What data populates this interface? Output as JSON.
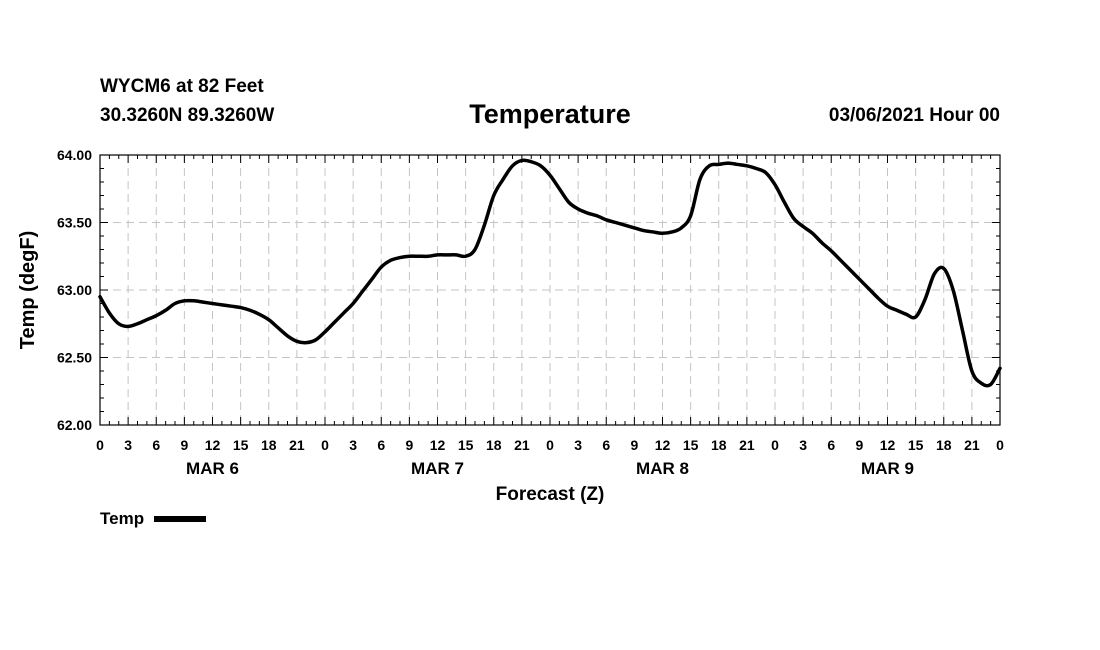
{
  "header": {
    "station": "WYCM6 at 82 Feet",
    "coords": "30.3260N 89.3260W",
    "title": "Temperature",
    "run_time": "03/06/2021 Hour 00"
  },
  "legend": {
    "label": "Temp",
    "color": "#000000"
  },
  "chart_data": {
    "type": "line",
    "title": "Temperature",
    "ylabel": "Temp (degF)",
    "xlabel": "Forecast (Z)",
    "ylim": [
      62.0,
      64.0
    ],
    "xlim": [
      0,
      96
    ],
    "x_unit": "hours since 03/06/2021 00Z",
    "yticks": [
      "62.00",
      "62.50",
      "63.00",
      "63.50",
      "64.00"
    ],
    "xtick_labels": [
      "0",
      "3",
      "6",
      "9",
      "12",
      "15",
      "18",
      "21",
      "0",
      "3",
      "6",
      "9",
      "12",
      "15",
      "18",
      "21",
      "0",
      "3",
      "6",
      "9",
      "12",
      "15",
      "18",
      "21",
      "0",
      "3",
      "6",
      "9",
      "12",
      "15",
      "18",
      "21",
      "0"
    ],
    "day_labels": [
      {
        "label": "MAR 6",
        "hour": 12
      },
      {
        "label": "MAR 7",
        "hour": 36
      },
      {
        "label": "MAR 8",
        "hour": 60
      },
      {
        "label": "MAR 9",
        "hour": 84
      }
    ],
    "grid": true,
    "legend_position": "bottom-left",
    "series": [
      {
        "name": "Temp",
        "color": "#000000",
        "x": [
          0,
          1,
          2,
          3,
          4,
          5,
          6,
          7,
          8,
          9,
          10,
          11,
          12,
          13,
          14,
          15,
          16,
          17,
          18,
          19,
          20,
          21,
          22,
          23,
          24,
          25,
          26,
          27,
          28,
          29,
          30,
          31,
          32,
          33,
          34,
          35,
          36,
          37,
          38,
          39,
          40,
          41,
          42,
          43,
          44,
          45,
          46,
          47,
          48,
          49,
          50,
          51,
          52,
          53,
          54,
          55,
          56,
          57,
          58,
          59,
          60,
          61,
          62,
          63,
          64,
          65,
          66,
          67,
          68,
          69,
          70,
          71,
          72,
          73,
          74,
          75,
          76,
          77,
          78,
          79,
          80,
          81,
          82,
          83,
          84,
          85,
          86,
          87,
          88,
          89,
          90,
          91,
          92,
          93,
          94,
          95,
          96
        ],
        "values": [
          62.95,
          62.83,
          62.75,
          62.73,
          62.75,
          62.78,
          62.81,
          62.85,
          62.9,
          62.92,
          62.92,
          62.91,
          62.9,
          62.89,
          62.88,
          62.87,
          62.85,
          62.82,
          62.78,
          62.72,
          62.66,
          62.62,
          62.61,
          62.63,
          62.69,
          62.76,
          62.83,
          62.9,
          62.99,
          63.08,
          63.17,
          63.22,
          63.24,
          63.25,
          63.25,
          63.25,
          63.26,
          63.26,
          63.26,
          63.25,
          63.3,
          63.48,
          63.7,
          63.82,
          63.92,
          63.96,
          63.95,
          63.92,
          63.85,
          63.75,
          63.65,
          63.6,
          63.57,
          63.55,
          63.52,
          63.5,
          63.48,
          63.46,
          63.44,
          63.43,
          63.42,
          63.43,
          63.46,
          63.55,
          63.82,
          63.92,
          63.93,
          63.94,
          63.93,
          63.92,
          63.9,
          63.87,
          63.78,
          63.65,
          63.53,
          63.47,
          63.42,
          63.35,
          63.29,
          63.22,
          63.15,
          63.08,
          63.01,
          62.94,
          62.88,
          62.85,
          62.82,
          62.8,
          62.93,
          63.12,
          63.16,
          63.0,
          62.7,
          62.4,
          62.31,
          62.3,
          62.42
        ]
      }
    ]
  }
}
